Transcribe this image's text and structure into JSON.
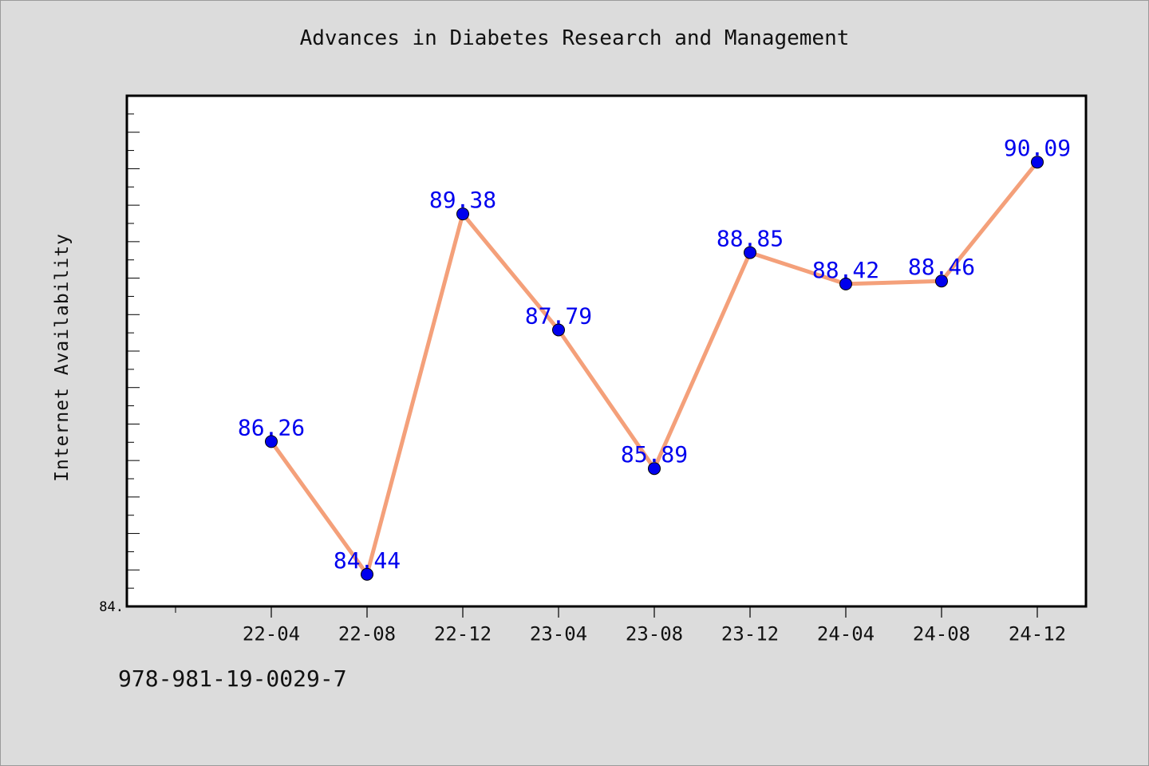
{
  "chart_data": {
    "type": "line",
    "title": "Advances in Diabetes Research and Management",
    "ylabel": "Internet Availability",
    "xlabel": "",
    "categories": [
      "22-04",
      "22-08",
      "22-12",
      "23-04",
      "23-08",
      "23-12",
      "24-04",
      "24-08",
      "24-12"
    ],
    "series": [
      {
        "values": [
          86.26,
          84.44,
          89.38,
          87.79,
          85.89,
          88.85,
          88.42,
          88.46,
          90.09
        ],
        "labels": [
          "86.26",
          "84.44",
          "89.38",
          "87.79",
          "85.89",
          "88.85",
          "88.42",
          "88.46",
          "90.09"
        ],
        "line_color": "#f4a07a",
        "marker_color": "#0000ee"
      }
    ],
    "y_tick_label": "84.",
    "ylim": [
      84.0,
      91.0
    ],
    "grid": false,
    "legend": "none",
    "label_color": "#0000ee"
  },
  "footer": {
    "isbn": "978-981-19-0029-7"
  }
}
